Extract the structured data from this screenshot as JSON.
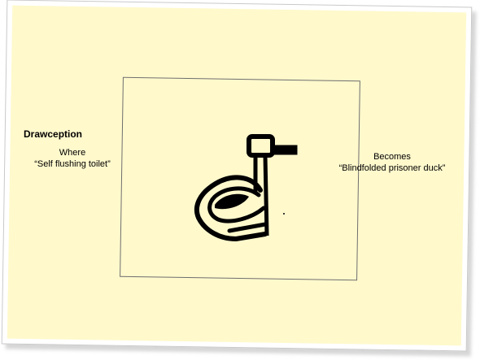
{
  "title": "Drawception",
  "left_caption": {
    "line1": "Where",
    "line2": "“Self flushing toilet”"
  },
  "right_caption": {
    "line1": "Becomes",
    "line2": "“Blindfolded prisoner duck”"
  },
  "colors": {
    "card_background": "#fff9cc",
    "ink": "#000000",
    "frame_border": "#6e6e6e"
  }
}
